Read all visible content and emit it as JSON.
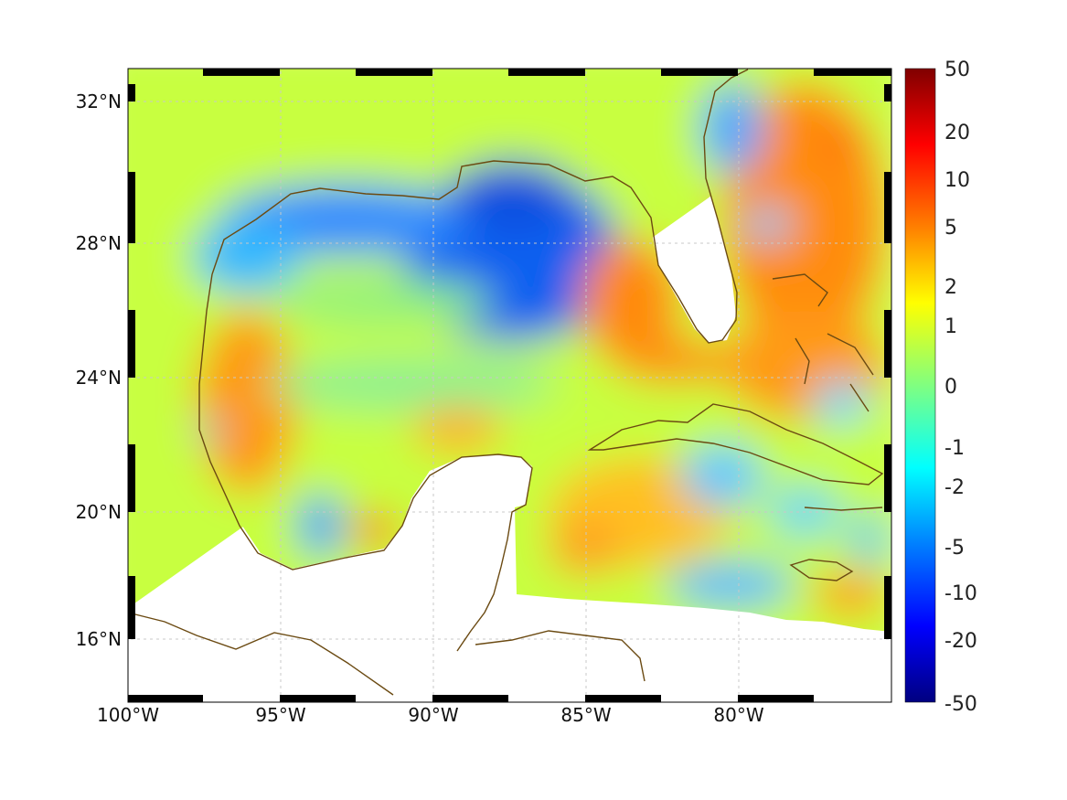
{
  "map": {
    "lon_ticks": [
      {
        "value": -100,
        "label": "100°W"
      },
      {
        "value": -95,
        "label": "95°W"
      },
      {
        "value": -90,
        "label": "90°W"
      },
      {
        "value": -85,
        "label": "85°W"
      },
      {
        "value": -80,
        "label": "80°W"
      }
    ],
    "lat_ticks": [
      {
        "value": 32,
        "label": "32°N"
      },
      {
        "value": 28,
        "label": "28°N"
      },
      {
        "value": 24,
        "label": "24°N"
      },
      {
        "value": 20,
        "label": "20°N"
      },
      {
        "value": 16,
        "label": "16°N"
      }
    ],
    "lon_range": [
      -100,
      -75
    ],
    "lat_range": [
      14.5,
      33
    ],
    "grid": true,
    "coastline_color": "#6b4a12"
  },
  "colorbar": {
    "labels": [
      "50",
      "20",
      "10",
      "5",
      "2",
      "1",
      "0",
      "-1",
      "-2",
      "-5",
      "-10",
      "-20",
      "-50"
    ],
    "colormap": "jet",
    "position": "right"
  }
}
